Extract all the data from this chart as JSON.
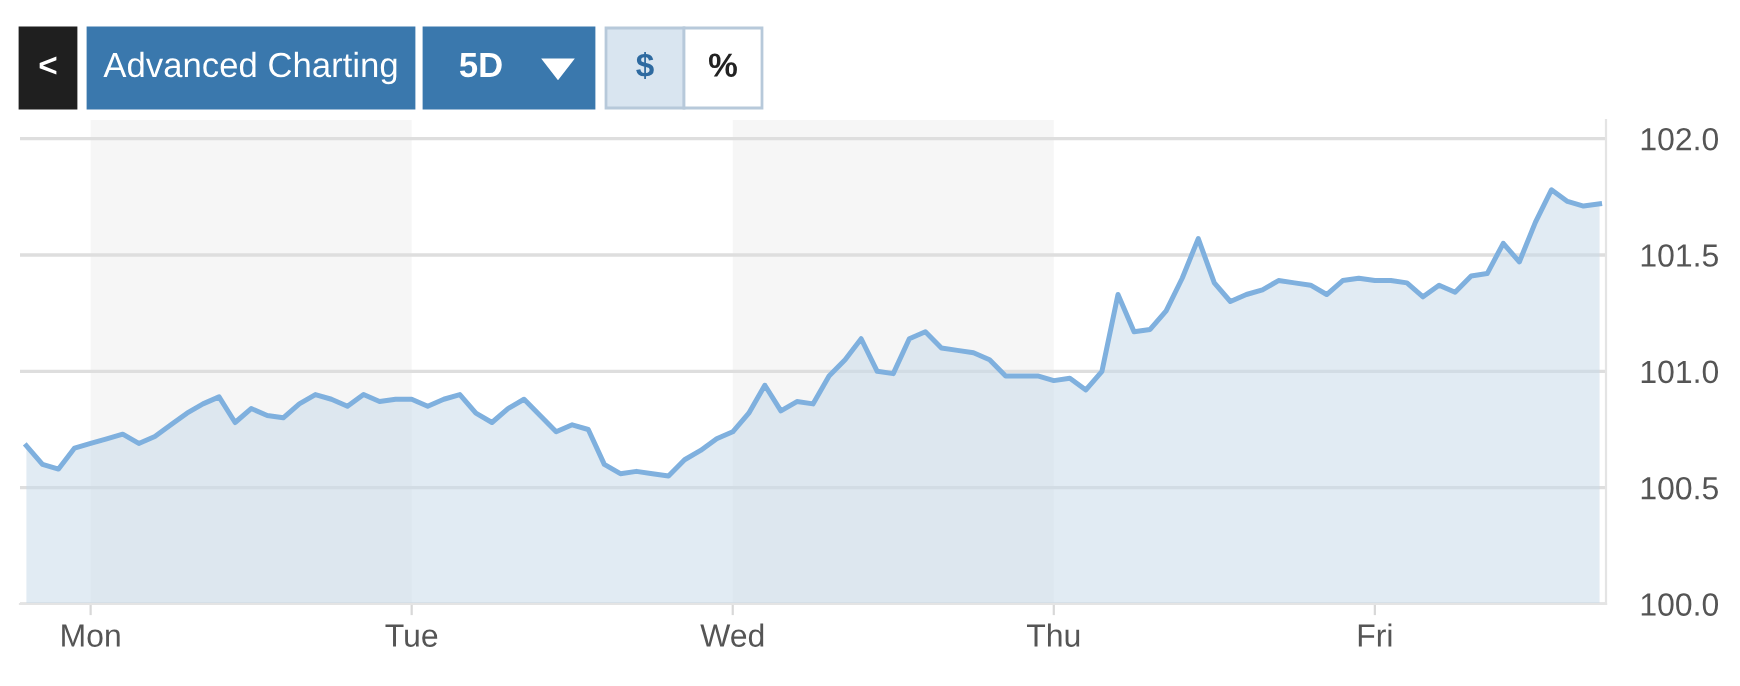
{
  "chart_data": {
    "type": "area",
    "annotations": [
      "<",
      "Advanced Charting",
      "5D",
      "$",
      "%"
    ],
    "categories": [
      null,
      null,
      null,
      null,
      "Mon",
      null,
      null,
      null,
      null,
      null,
      null,
      null,
      null,
      null,
      null,
      null,
      null,
      null,
      null,
      null,
      null,
      null,
      null,
      null,
      "Tue",
      null,
      null,
      null,
      null,
      null,
      null,
      null,
      null,
      null,
      null,
      null,
      null,
      null,
      null,
      null,
      null,
      null,
      null,
      null,
      "Wed",
      null,
      null,
      null,
      null,
      null,
      null,
      null,
      null,
      null,
      null,
      null,
      null,
      null,
      null,
      null,
      null,
      null,
      null,
      null,
      "Thu",
      null,
      null,
      null,
      null,
      null,
      null,
      null,
      null,
      null,
      null,
      null,
      null,
      null,
      null,
      null,
      null,
      null,
      null,
      null,
      "Fri",
      null,
      null,
      null,
      null,
      null,
      null,
      null,
      null,
      null,
      null,
      null,
      null,
      null,
      null
    ],
    "series": [
      {
        "color": "#7fb0de",
        "values": [
          100.68,
          100.6,
          100.58,
          100.67,
          100.69,
          100.71,
          100.73,
          100.69,
          100.72,
          100.77,
          100.82,
          100.86,
          100.89,
          100.78,
          100.84,
          100.81,
          100.8,
          100.86,
          100.9,
          100.88,
          100.85,
          100.9,
          100.87,
          100.88,
          100.88,
          100.85,
          100.88,
          100.9,
          100.82,
          100.78,
          100.84,
          100.88,
          100.81,
          100.74,
          100.77,
          100.75,
          100.6,
          100.56,
          100.57,
          100.56,
          100.55,
          100.62,
          100.66,
          100.71,
          100.74,
          100.82,
          100.94,
          100.83,
          100.87,
          100.86,
          100.98,
          101.05,
          101.14,
          101.0,
          100.99,
          101.14,
          101.17,
          101.1,
          101.09,
          101.08,
          101.05,
          100.98,
          100.98,
          100.98,
          100.96,
          100.97,
          100.92,
          101.0,
          101.33,
          101.17,
          101.18,
          101.26,
          101.4,
          101.57,
          101.38,
          101.3,
          101.33,
          101.35,
          101.39,
          101.38,
          101.37,
          101.33,
          101.39,
          101.4,
          101.39,
          101.39,
          101.38,
          101.32,
          101.37,
          101.34,
          101.41,
          101.42,
          101.55,
          101.47,
          101.64,
          101.78,
          101.73,
          101.71,
          101.72
        ]
      }
    ],
    "ylim": [
      100.0,
      102.08
    ],
    "yticks": [
      {
        "value": 100.0,
        "label": "100.0"
      },
      {
        "value": 100.5,
        "label": "100.5"
      },
      {
        "value": 101.0,
        "label": "101.0"
      },
      {
        "value": 101.5,
        "label": "101.5"
      },
      {
        "value": 102.0,
        "label": "102.0"
      }
    ],
    "bands": [
      {
        "axis": "x",
        "from": "Mon",
        "to": "Tue",
        "color": "#f6f6f6"
      },
      {
        "axis": "x",
        "from": "Wed",
        "to": "Thu",
        "color": "#f6f6f6"
      }
    ],
    "grid": "y",
    "legend": false,
    "marker": "none",
    "line_style": "solid"
  }
}
